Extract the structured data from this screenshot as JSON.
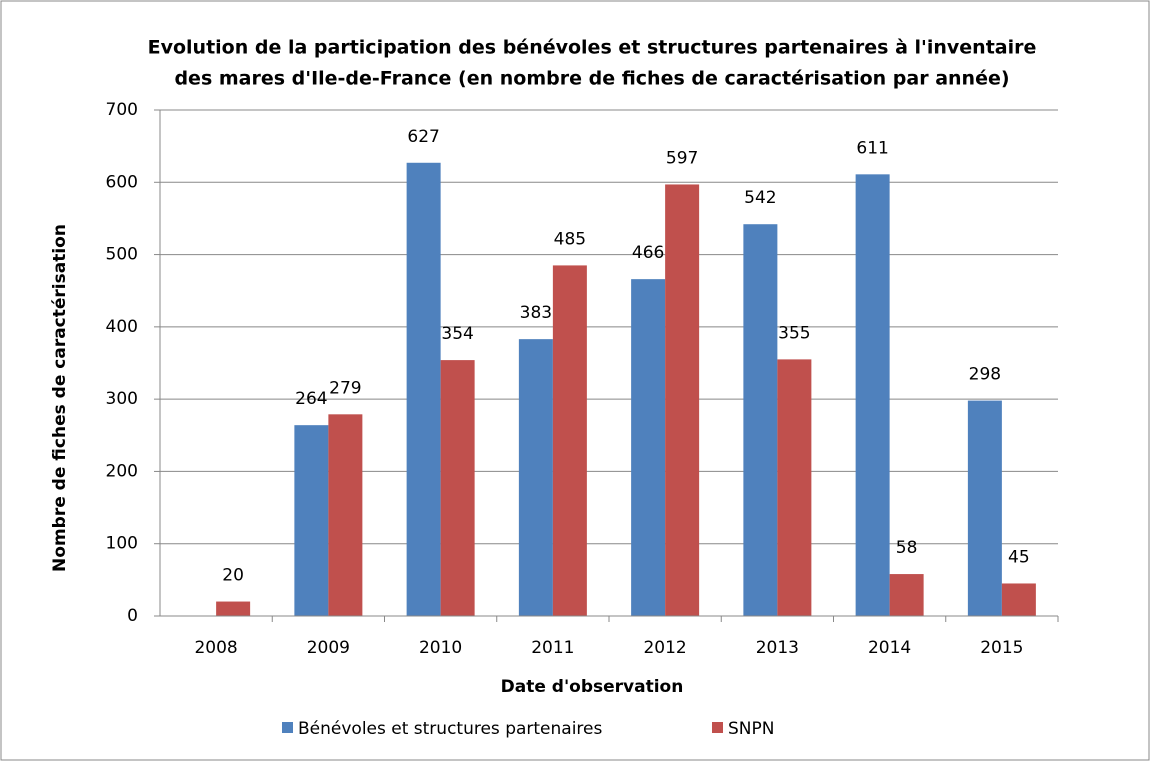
{
  "chart_data": {
    "type": "bar",
    "title": [
      "Evolution de la participation des bénévoles et structures partenaires à l'inventaire",
      "des mares d'Ile-de-France (en nombre de fiches de caractérisation par année)"
    ],
    "x_label": "Date d'observation",
    "y_label": "Nombre de fiches de caractérisation",
    "categories": [
      "2008",
      "2009",
      "2010",
      "2011",
      "2012",
      "2013",
      "2014",
      "2015"
    ],
    "series": [
      {
        "name": "Bénévoles et structures partenaires",
        "color": "#4f81bd",
        "values": [
          null,
          264,
          627,
          383,
          466,
          542,
          611,
          298
        ]
      },
      {
        "name": "SNPN",
        "color": "#c0504d",
        "values": [
          20,
          279,
          354,
          485,
          597,
          355,
          58,
          45
        ]
      }
    ],
    "ylim": [
      0,
      700
    ],
    "yticks": [
      0,
      100,
      200,
      300,
      400,
      500,
      600,
      700
    ],
    "grid": true,
    "legend": "bottom"
  }
}
